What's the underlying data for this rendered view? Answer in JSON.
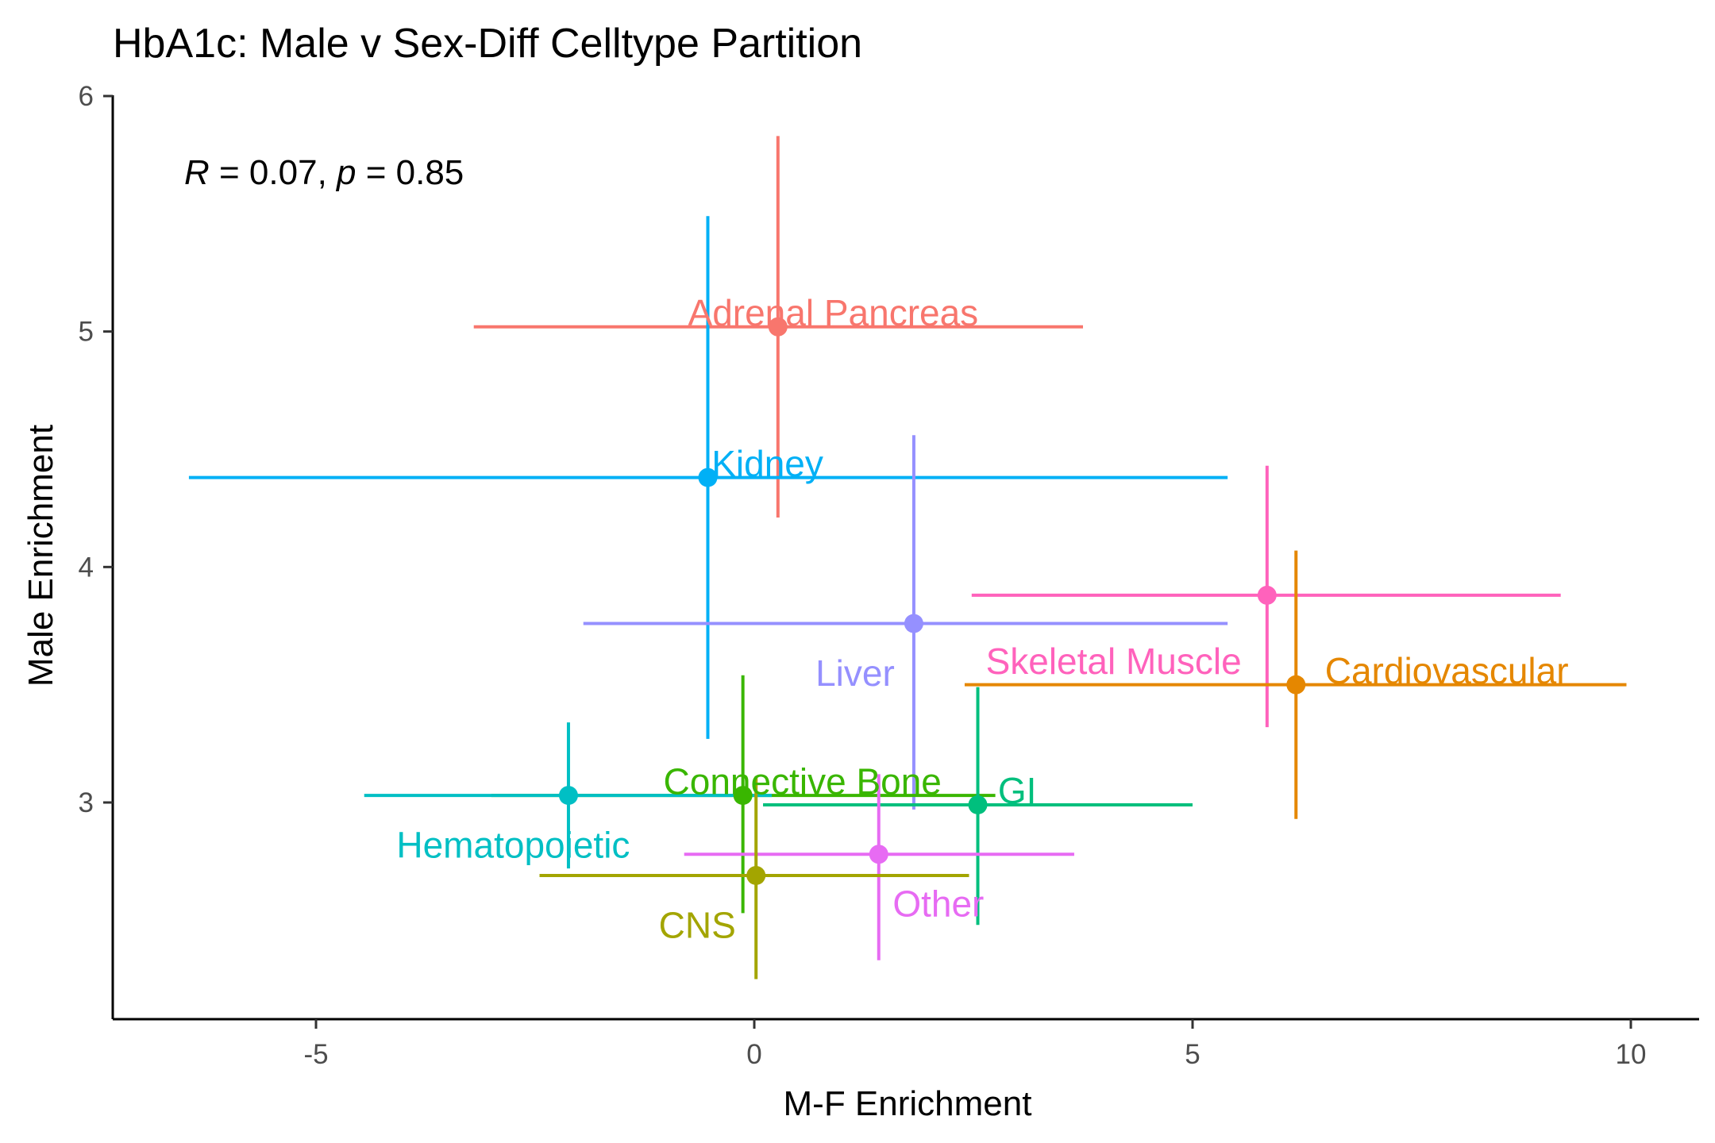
{
  "chart_data": {
    "type": "scatter",
    "title": "HbA1c: Male v Sex-Diff Celltype Partition",
    "xlabel": "M-F Enrichment",
    "ylabel": "Male Enrichment",
    "xlim": [
      -7.3,
      10.6
    ],
    "ylim": [
      2.08,
      6.0
    ],
    "x_ticks": [
      -5,
      0,
      5,
      10
    ],
    "y_ticks": [
      3,
      4,
      5,
      6
    ],
    "x_tick_labels": [
      "-5",
      "0",
      "5",
      "10"
    ],
    "y_tick_labels": [
      "3",
      "4",
      "5",
      "6"
    ],
    "annotation": {
      "r_symbol": "R",
      "r_text": " = 0.07, ",
      "p_symbol": "p",
      "p_text": " = 0.85"
    },
    "grid": false,
    "legend": "none",
    "points": [
      {
        "label": "Adrenal Pancreas",
        "x": 0.27,
        "y": 5.02,
        "xmin": -3.2,
        "xmax": 3.75,
        "ymin": 4.21,
        "ymax": 5.83,
        "color": "#F8766D",
        "label_x": 0.9,
        "label_y": 5.08
      },
      {
        "label": "Kidney",
        "x": -0.53,
        "y": 4.38,
        "xmin": -6.45,
        "xmax": 5.4,
        "ymin": 3.27,
        "ymax": 5.49,
        "color": "#00B0F6",
        "label_x": 0.15,
        "label_y": 4.44
      },
      {
        "label": "Liver",
        "x": 1.82,
        "y": 3.76,
        "xmin": -1.95,
        "xmax": 5.4,
        "ymin": 2.97,
        "ymax": 4.56,
        "color": "#9590FF",
        "label_x": 1.15,
        "label_y": 3.55
      },
      {
        "label": "Skeletal Muscle",
        "x": 5.85,
        "y": 3.88,
        "xmin": 2.48,
        "xmax": 9.2,
        "ymin": 3.32,
        "ymax": 4.43,
        "color": "#FF62BC",
        "label_x": 4.1,
        "label_y": 3.6
      },
      {
        "label": "Cardiovascular",
        "x": 6.18,
        "y": 3.5,
        "xmin": 2.4,
        "xmax": 9.95,
        "ymin": 2.93,
        "ymax": 4.07,
        "color": "#E58700",
        "label_x": 7.9,
        "label_y": 3.56
      },
      {
        "label": "Connective Bone",
        "x": -0.13,
        "y": 3.03,
        "xmin": -3.0,
        "xmax": 2.75,
        "ymin": 2.53,
        "ymax": 3.54,
        "color": "#39B600",
        "label_x": 0.55,
        "label_y": 3.09
      },
      {
        "label": "GI",
        "x": 2.55,
        "y": 2.99,
        "xmin": 0.1,
        "xmax": 5.0,
        "ymin": 2.48,
        "ymax": 3.49,
        "color": "#00BF7D",
        "label_x": 3.0,
        "label_y": 3.05
      },
      {
        "label": "Hematopoietic",
        "x": -2.12,
        "y": 3.03,
        "xmin": -4.45,
        "xmax": 0.2,
        "ymin": 2.72,
        "ymax": 3.34,
        "color": "#00BFC4",
        "label_x": -2.75,
        "label_y": 2.82
      },
      {
        "label": "Other",
        "x": 1.42,
        "y": 2.78,
        "xmin": -0.8,
        "xmax": 3.65,
        "ymin": 2.33,
        "ymax": 3.12,
        "color": "#E76BF3",
        "label_x": 2.1,
        "label_y": 2.57
      },
      {
        "label": "CNS",
        "x": 0.02,
        "y": 2.69,
        "xmin": -2.45,
        "xmax": 2.45,
        "ymin": 2.25,
        "ymax": 3.11,
        "color": "#A3A500",
        "label_x": -0.65,
        "label_y": 2.48
      }
    ]
  }
}
